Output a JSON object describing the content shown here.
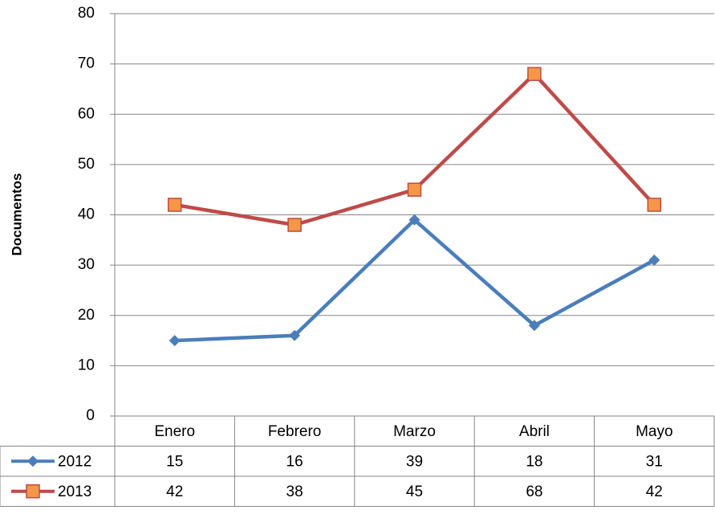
{
  "chart_data": {
    "type": "line",
    "y_label": "Documentos",
    "categories": [
      "Enero",
      "Febrero",
      "Marzo",
      "Abril",
      "Mayo"
    ],
    "series": [
      {
        "name": "2012",
        "color": "#4a7ebb",
        "marker": "diamond",
        "values": [
          15,
          16,
          39,
          18,
          31
        ]
      },
      {
        "name": "2013",
        "color": "#be4b48",
        "marker": "square",
        "marker_fill": "#f79646",
        "values": [
          42,
          38,
          45,
          68,
          42
        ]
      }
    ],
    "ylim": [
      0,
      80
    ],
    "yticks": [
      0,
      10,
      20,
      30,
      40,
      50,
      60,
      70,
      80
    ],
    "grid": true,
    "data_table": true
  }
}
